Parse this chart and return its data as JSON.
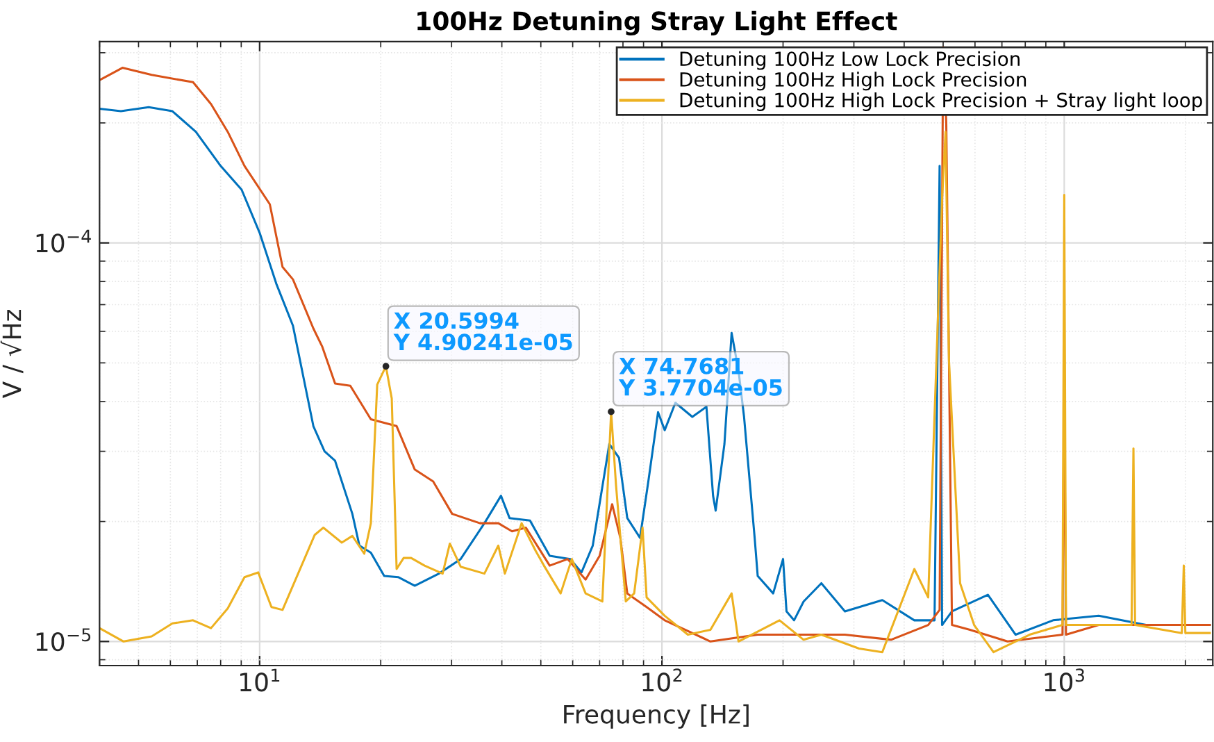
{
  "chart_data": {
    "type": "line",
    "title": "100Hz Detuning Stray Light Effect",
    "xlabel": "Frequency [Hz]",
    "ylabel": "V / √Hz",
    "log": "xy",
    "grid": true,
    "legend": "top right",
    "xlim": [
      4,
      2340
    ],
    "ylim": [
      8.7e-06,
      0.00032
    ],
    "xticks": [
      {
        "value": 10,
        "label": "10$^{1}$"
      },
      {
        "value": 100,
        "label": "10$^{2}$"
      },
      {
        "value": 1000,
        "label": "10$^{3}$"
      }
    ],
    "yticks": [
      {
        "value": 1e-05,
        "label": "10$^{−5}$"
      },
      {
        "value": 0.0001,
        "label": "10$^{−4}$"
      }
    ],
    "series": [
      {
        "name": "Detuning 100Hz Low Lock Precision",
        "color": "#0072bd",
        "x": [
          4.0,
          4.52,
          5.3,
          6.07,
          6.94,
          8.0,
          9.02,
          10,
          11.0,
          12.1,
          13.6,
          14.5,
          15.4,
          17.0,
          17.7,
          18.9,
          20.4,
          22.1,
          24.3,
          27.9,
          31.6,
          36.2,
          39.8,
          41.8,
          47.0,
          52.6,
          59.2,
          63.1,
          67.3,
          74.0,
          78.2,
          82.0,
          88.2,
          92.5,
          97.8,
          101.6,
          108,
          119,
          129,
          134,
          136,
          143,
          149,
          155,
          160,
          170,
          173,
          189,
          200,
          204,
          213,
          225,
          249,
          285,
          353,
          424,
          467,
          476,
          490,
          497,
          526,
          646,
          757,
          938,
          1218,
          1597,
          2300
        ],
        "values": [
          0.000217,
          0.000214,
          0.000219,
          0.000214,
          0.00019,
          0.000156,
          0.000136,
          0.000106,
          7.9e-05,
          6.2e-05,
          3.47e-05,
          3e-05,
          2.84e-05,
          2.09e-05,
          1.74e-05,
          1.67e-05,
          1.46e-05,
          1.45e-05,
          1.38e-05,
          1.48e-05,
          1.61e-05,
          1.98e-05,
          2.32e-05,
          2.04e-05,
          2.01e-05,
          1.64e-05,
          1.61e-05,
          1.49e-05,
          1.74e-05,
          3.13e-05,
          2.89e-05,
          2.04e-05,
          1.82e-05,
          2.52e-05,
          3.76e-05,
          3.39e-05,
          3.97e-05,
          3.66e-05,
          3.88e-05,
          2.32e-05,
          2.13e-05,
          3.13e-05,
          5.94e-05,
          4.78e-05,
          3.66e-05,
          1.82e-05,
          1.46e-05,
          1.32e-05,
          1.61e-05,
          1.19e-05,
          1.13e-05,
          1.26e-05,
          1.4e-05,
          1.19e-05,
          1.27e-05,
          1.13e-05,
          1.13e-05,
          1.13e-05,
          0.000156,
          1.1e-05,
          1.19e-05,
          1.31e-05,
          1.04e-05,
          1.13e-05,
          1.16e-05,
          1.1e-05,
          1.1e-05
        ]
      },
      {
        "name": "Detuning 100Hz High Lock Precision",
        "color": "#d95319",
        "x": [
          4.0,
          4.56,
          5.39,
          6.83,
          7.57,
          8.33,
          9.17,
          10.6,
          11.4,
          12.1,
          13.6,
          14.3,
          15.4,
          16.8,
          18.9,
          21.9,
          24.3,
          27.0,
          30.1,
          35.3,
          39.2,
          42.4,
          45.9,
          52.6,
          58.3,
          64.6,
          70.0,
          75.2,
          78.8,
          82.0,
          91.6,
          101.6,
          132,
          173,
          225,
          285,
          371,
          459,
          490,
          500,
          509,
          526,
          583,
          723,
          990,
          1000,
          1010,
          1218,
          2300
        ],
        "values": [
          0.000256,
          0.000275,
          0.000264,
          0.000253,
          0.000223,
          0.00019,
          0.000156,
          0.000125,
          8.7e-05,
          8.1e-05,
          6.1e-05,
          5.5e-05,
          4.44e-05,
          4.38e-05,
          3.61e-05,
          3.47e-05,
          2.7e-05,
          2.52e-05,
          2.09e-05,
          1.98e-05,
          1.98e-05,
          1.89e-05,
          1.93e-05,
          1.55e-05,
          1.61e-05,
          1.43e-05,
          1.64e-05,
          2.21e-05,
          1.82e-05,
          1.32e-05,
          1.22e-05,
          1.13e-05,
          1e-05,
          1.04e-05,
          1.04e-05,
          1.04e-05,
          1.01e-05,
          1.1e-05,
          1.2e-05,
          0.00031,
          0.0002,
          1.1e-05,
          1.07e-05,
          1e-05,
          1.04e-05,
          4.66e-05,
          1.04e-05,
          1.1e-05,
          1.1e-05
        ]
      },
      {
        "name": "Detuning 100Hz High Lock Precision + Stray light loop",
        "color": "#edb120",
        "x": [
          4.0,
          4.59,
          5.39,
          6.07,
          6.83,
          7.57,
          8.33,
          9.17,
          9.92,
          10.7,
          11.4,
          13.7,
          14.4,
          16.0,
          17.0,
          18.2,
          18.9,
          19.6,
          20.5994,
          21.3,
          21.9,
          22.8,
          23.8,
          25.7,
          28.5,
          29.7,
          31.6,
          36.2,
          39.2,
          40.7,
          44.8,
          48.5,
          50.9,
          56.0,
          59.7,
          64.6,
          71.1,
          74.7681,
          76.9,
          81.3,
          85.3,
          89.5,
          91.6,
          101.6,
          116,
          132,
          149,
          155,
          196,
          225,
          249,
          309,
          353,
          424,
          459,
          497,
          507,
          517,
          551,
          597,
          667,
          820,
          990,
          1000,
          1010,
          1218,
          1470,
          1486,
          1500,
          1960,
          1982,
          2000,
          2300
        ],
        "values": [
          1.08e-05,
          1e-05,
          1.03e-05,
          1.11e-05,
          1.13e-05,
          1.08e-05,
          1.21e-05,
          1.45e-05,
          1.49e-05,
          1.22e-05,
          1.2e-05,
          1.85e-05,
          1.93e-05,
          1.77e-05,
          1.84e-05,
          1.66e-05,
          1.98e-05,
          4.41e-05,
          4.90241e-05,
          4.07e-05,
          1.52e-05,
          1.62e-05,
          1.62e-05,
          1.55e-05,
          1.48e-05,
          1.76e-05,
          1.54e-05,
          1.48e-05,
          1.74e-05,
          1.48e-05,
          1.98e-05,
          1.69e-05,
          1.55e-05,
          1.32e-05,
          1.61e-05,
          1.32e-05,
          1.26e-05,
          3.7704e-05,
          2.46e-05,
          1.26e-05,
          1.32e-05,
          1.93e-05,
          1.29e-05,
          1.16e-05,
          1.04e-05,
          1.07e-05,
          1.32e-05,
          1e-05,
          1.13e-05,
          1.01e-05,
          1.04e-05,
          9.6e-06,
          9.4e-06,
          1.52e-05,
          1.29e-05,
          0.000129,
          0.00019,
          5.06e-05,
          1.4e-05,
          1.1e-05,
          9.4e-06,
          1.04e-05,
          1.1e-05,
          0.000132,
          1.1e-05,
          1.1e-05,
          1.1e-05,
          3.05e-05,
          1.1e-05,
          1.05e-05,
          1.55e-05,
          1.05e-05,
          1.05e-05
        ]
      }
    ],
    "annotations": [
      {
        "text": "X 20.5994\nY 4.90241e-05",
        "x": 20.5994,
        "y": 4.90241e-05
      },
      {
        "text": "X 74.7681\nY 3.7704e-05",
        "x": 74.7681,
        "y": 3.7704e-05
      }
    ]
  }
}
